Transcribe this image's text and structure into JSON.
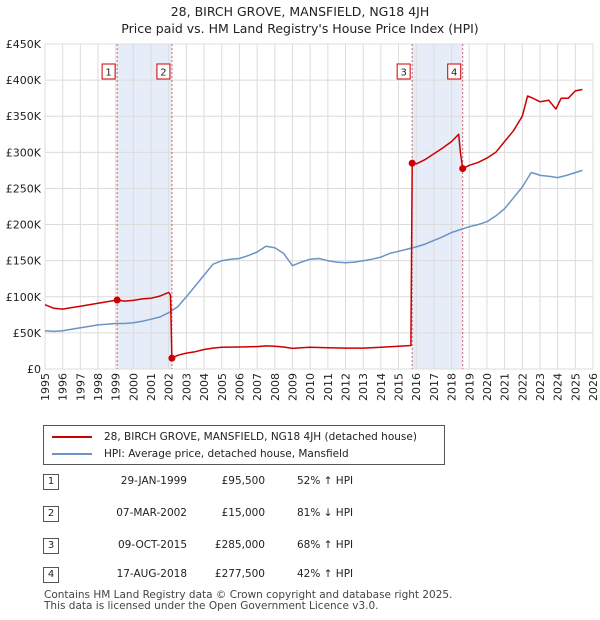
{
  "chart_data": {
    "type": "line",
    "title": "28, BIRCH GROVE, MANSFIELD, NG18 4JH",
    "subtitle": "Price paid vs. HM Land Registry's House Price Index (HPI)",
    "xlim": [
      1995,
      2026
    ],
    "ylim": [
      0,
      450000
    ],
    "x_ticks": [
      "1995",
      "1996",
      "1997",
      "1998",
      "1999",
      "2000",
      "2001",
      "2002",
      "2003",
      "2004",
      "2005",
      "2006",
      "2007",
      "2008",
      "2009",
      "2010",
      "2011",
      "2012",
      "2013",
      "2014",
      "2015",
      "2016",
      "2017",
      "2018",
      "2019",
      "2020",
      "2021",
      "2022",
      "2023",
      "2024",
      "2025",
      "2026"
    ],
    "y_ticks": [
      {
        "value": 0,
        "label": "£0"
      },
      {
        "value": 50000,
        "label": "£50K"
      },
      {
        "value": 100000,
        "label": "£100K"
      },
      {
        "value": 150000,
        "label": "£150K"
      },
      {
        "value": 200000,
        "label": "£200K"
      },
      {
        "value": 250000,
        "label": "£250K"
      },
      {
        "value": 300000,
        "label": "£300K"
      },
      {
        "value": 350000,
        "label": "£350K"
      },
      {
        "value": 400000,
        "label": "£400K"
      },
      {
        "value": 450000,
        "label": "£450K"
      }
    ],
    "shaded_periods": [
      [
        1999.08,
        2002.18
      ],
      [
        2015.77,
        2018.63
      ]
    ],
    "series": [
      {
        "name": "28, BIRCH GROVE, MANSFIELD, NG18 4JH (detached house)",
        "color": "#cc0000",
        "points": [
          [
            1995.0,
            89000
          ],
          [
            1995.5,
            84000
          ],
          [
            1996.0,
            83000
          ],
          [
            1996.5,
            85000
          ],
          [
            1997.0,
            87000
          ],
          [
            1997.5,
            89000
          ],
          [
            1998.0,
            91000
          ],
          [
            1998.5,
            93000
          ],
          [
            1999.08,
            95500
          ],
          [
            1999.5,
            94000
          ],
          [
            2000.0,
            95000
          ],
          [
            2000.5,
            97000
          ],
          [
            2001.0,
            98000
          ],
          [
            2001.5,
            101000
          ],
          [
            2002.0,
            106000
          ],
          [
            2002.1,
            102000
          ],
          [
            2002.18,
            15000
          ],
          [
            2002.5,
            19000
          ],
          [
            2003.0,
            22000
          ],
          [
            2003.5,
            24000
          ],
          [
            2004.0,
            27000
          ],
          [
            2004.5,
            29000
          ],
          [
            2005.0,
            30000
          ],
          [
            2006.0,
            30500
          ],
          [
            2007.0,
            31000
          ],
          [
            2007.5,
            32000
          ],
          [
            2008.0,
            31500
          ],
          [
            2008.5,
            30500
          ],
          [
            2009.0,
            28500
          ],
          [
            2009.5,
            29500
          ],
          [
            2010.0,
            30000
          ],
          [
            2011.0,
            29500
          ],
          [
            2012.0,
            29000
          ],
          [
            2013.0,
            29000
          ],
          [
            2014.0,
            30000
          ],
          [
            2015.0,
            31500
          ],
          [
            2015.7,
            32500
          ],
          [
            2015.77,
            285000
          ],
          [
            2016.0,
            284000
          ],
          [
            2016.5,
            290000
          ],
          [
            2017.0,
            298000
          ],
          [
            2017.5,
            306000
          ],
          [
            2018.0,
            315000
          ],
          [
            2018.4,
            325000
          ],
          [
            2018.5,
            300000
          ],
          [
            2018.63,
            277500
          ],
          [
            2019.0,
            282000
          ],
          [
            2019.5,
            286000
          ],
          [
            2020.0,
            292000
          ],
          [
            2020.5,
            300000
          ],
          [
            2021.0,
            315000
          ],
          [
            2021.5,
            330000
          ],
          [
            2022.0,
            350000
          ],
          [
            2022.3,
            378000
          ],
          [
            2022.6,
            375000
          ],
          [
            2023.0,
            370000
          ],
          [
            2023.5,
            372000
          ],
          [
            2023.9,
            360000
          ],
          [
            2024.2,
            375000
          ],
          [
            2024.6,
            375000
          ],
          [
            2025.0,
            385000
          ],
          [
            2025.4,
            387000
          ]
        ]
      },
      {
        "name": "HPI: Average price, detached house, Mansfield",
        "color": "#6b93c4",
        "points": [
          [
            1995.0,
            53000
          ],
          [
            1995.5,
            52000
          ],
          [
            1996.0,
            53000
          ],
          [
            1996.5,
            55000
          ],
          [
            1997.0,
            57000
          ],
          [
            1997.5,
            59000
          ],
          [
            1998.0,
            61000
          ],
          [
            1998.5,
            62000
          ],
          [
            1999.0,
            63000
          ],
          [
            1999.5,
            63000
          ],
          [
            2000.0,
            64000
          ],
          [
            2000.5,
            66000
          ],
          [
            2001.0,
            69000
          ],
          [
            2001.5,
            72000
          ],
          [
            2002.0,
            78000
          ],
          [
            2002.5,
            86000
          ],
          [
            2003.0,
            100000
          ],
          [
            2003.5,
            115000
          ],
          [
            2004.0,
            130000
          ],
          [
            2004.5,
            145000
          ],
          [
            2005.0,
            150000
          ],
          [
            2005.5,
            152000
          ],
          [
            2006.0,
            153000
          ],
          [
            2006.5,
            157000
          ],
          [
            2007.0,
            162000
          ],
          [
            2007.5,
            170000
          ],
          [
            2008.0,
            168000
          ],
          [
            2008.5,
            160000
          ],
          [
            2009.0,
            143000
          ],
          [
            2009.5,
            148000
          ],
          [
            2010.0,
            152000
          ],
          [
            2010.5,
            153000
          ],
          [
            2011.0,
            150000
          ],
          [
            2011.5,
            148000
          ],
          [
            2012.0,
            147000
          ],
          [
            2012.5,
            148000
          ],
          [
            2013.0,
            150000
          ],
          [
            2013.5,
            152000
          ],
          [
            2014.0,
            155000
          ],
          [
            2014.5,
            160000
          ],
          [
            2015.0,
            163000
          ],
          [
            2015.5,
            166000
          ],
          [
            2016.0,
            169000
          ],
          [
            2016.5,
            173000
          ],
          [
            2017.0,
            178000
          ],
          [
            2017.5,
            183000
          ],
          [
            2018.0,
            189000
          ],
          [
            2018.5,
            193000
          ],
          [
            2019.0,
            197000
          ],
          [
            2019.5,
            200000
          ],
          [
            2020.0,
            204000
          ],
          [
            2020.5,
            212000
          ],
          [
            2021.0,
            222000
          ],
          [
            2021.5,
            237000
          ],
          [
            2022.0,
            252000
          ],
          [
            2022.5,
            272000
          ],
          [
            2022.8,
            270000
          ],
          [
            2023.0,
            268000
          ],
          [
            2023.5,
            267000
          ],
          [
            2024.0,
            265000
          ],
          [
            2024.5,
            268000
          ],
          [
            2025.0,
            272000
          ],
          [
            2025.4,
            275000
          ]
        ]
      }
    ],
    "sale_markers": [
      {
        "label": "1",
        "x": 1999.08,
        "y": 95500
      },
      {
        "label": "2",
        "x": 2002.18,
        "y": 15000
      },
      {
        "label": "3",
        "x": 2015.77,
        "y": 285000
      },
      {
        "label": "4",
        "x": 2018.63,
        "y": 277500
      }
    ]
  },
  "sales_table": [
    {
      "num": "1",
      "date": "29-JAN-1999",
      "price": "£95,500",
      "hpi": "52% ↑ HPI"
    },
    {
      "num": "2",
      "date": "07-MAR-2002",
      "price": "£15,000",
      "hpi": "81% ↓ HPI"
    },
    {
      "num": "3",
      "date": "09-OCT-2015",
      "price": "£285,000",
      "hpi": "68% ↑ HPI"
    },
    {
      "num": "4",
      "date": "17-AUG-2018",
      "price": "£277,500",
      "hpi": "42% ↑ HPI"
    }
  ],
  "legend": {
    "property_label": "28, BIRCH GROVE, MANSFIELD, NG18 4JH (detached house)",
    "hpi_label": "HPI: Average price, detached house, Mansfield"
  },
  "footer": {
    "line1": "Contains HM Land Registry data © Crown copyright and database right 2025.",
    "line2": "This data is licensed under the Open Government Licence v3.0."
  },
  "colors": {
    "property": "#cc0000",
    "hpi": "#6b93c4",
    "shade": "#dde6f5",
    "grid": "#dcdcdc"
  }
}
